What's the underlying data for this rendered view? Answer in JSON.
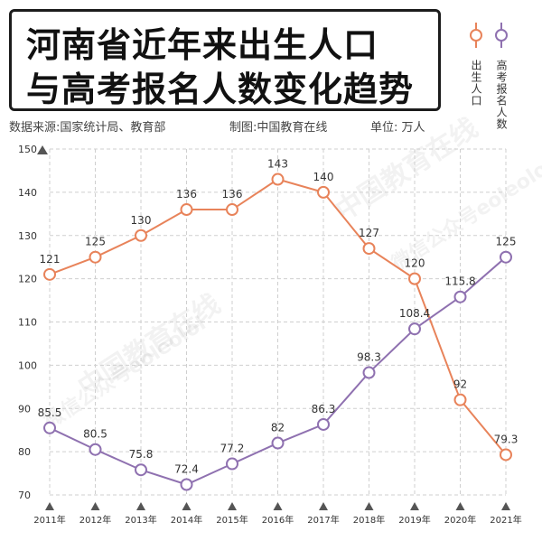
{
  "title": {
    "line1": "河南省近年来出生人口",
    "line2": "与高考报名人数变化趋势"
  },
  "source_text": "数据来源:国家统计局、教育部",
  "credit_text": "制图:中国教育在线",
  "unit_text": "单位:  万人",
  "watermarks": [
    "中国教育在线",
    "微信公众号eoleolol",
    "中国教育在线",
    "微信公众号eoleolol"
  ],
  "colors": {
    "births": "#e8835a",
    "gaokao": "#8f71b0",
    "grid": "#cfcfcf",
    "axis_marker": "#555555"
  },
  "chart_data": {
    "type": "line",
    "title": "河南省近年来出生人口与高考报名人数变化趋势",
    "ylabel": "万人",
    "ylim": [
      70,
      150
    ],
    "yticks": [
      70,
      80,
      90,
      100,
      110,
      120,
      130,
      140,
      150
    ],
    "categories": [
      "2011年",
      "2012年",
      "2013年",
      "2014年",
      "2015年",
      "2016年",
      "2017年",
      "2018年",
      "2019年",
      "2020年",
      "2021年"
    ],
    "series": [
      {
        "name": "出生人口",
        "values": [
          121,
          125,
          130,
          136,
          136,
          143,
          140,
          127,
          120,
          92,
          79.3
        ],
        "labels": [
          "121",
          "125",
          "130",
          "136",
          "136",
          "143",
          "140",
          "127",
          "120",
          "92",
          "79.3"
        ]
      },
      {
        "name": "高考报名人数",
        "values": [
          85.5,
          80.5,
          75.8,
          72.4,
          77.2,
          82,
          86.3,
          98.3,
          108.4,
          115.8,
          125
        ],
        "labels": [
          "85.5",
          "80.5",
          "75.8",
          "72.4",
          "77.2",
          "82",
          "86.3",
          "98.3",
          "108.4",
          "115.8",
          "125"
        ]
      }
    ],
    "legend_position": "top-right",
    "grid": true
  }
}
